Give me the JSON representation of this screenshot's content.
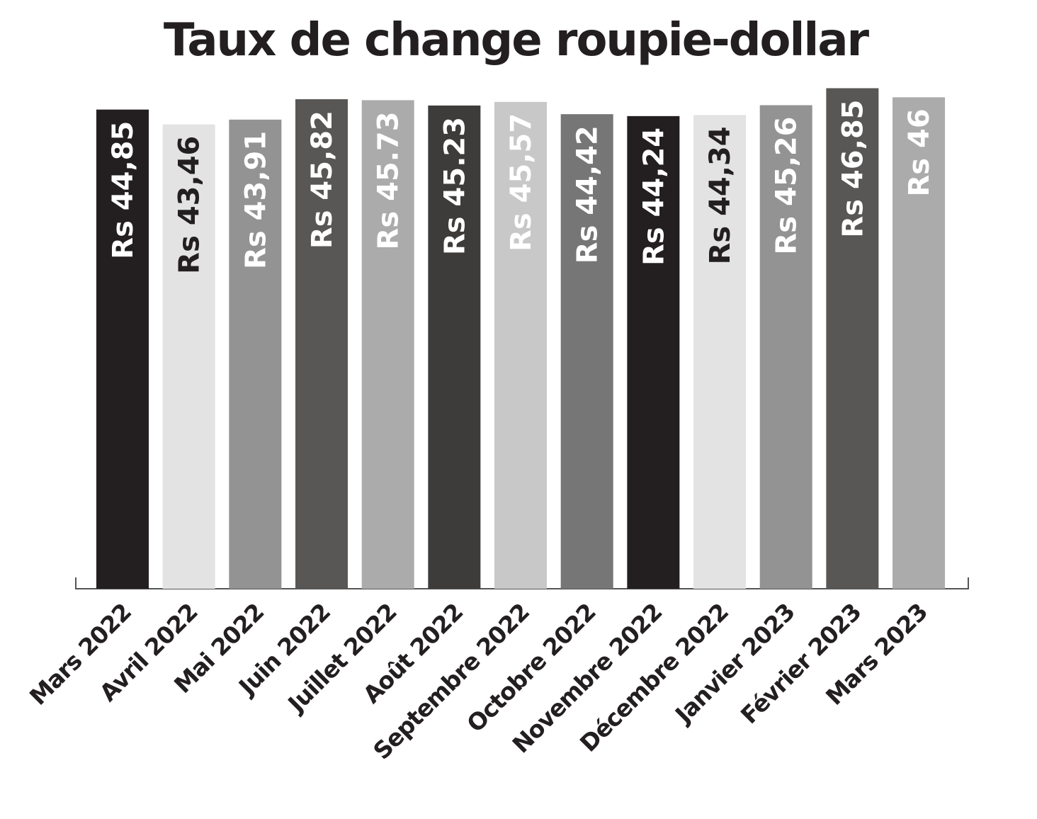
{
  "chart_data": {
    "type": "bar",
    "title": "Taux de change roupie-dollar",
    "categories": [
      "Mars 2022",
      "Avril 2022",
      "Mai 2022",
      "Juin 2022",
      "Juillet 2022",
      "Août 2022",
      "Septembre 2022",
      "Octobre 2022",
      "Novembre 2022",
      "Décembre 2022",
      "Janvier 2023",
      "Février 2023",
      "Mars 2023"
    ],
    "values": [
      44.85,
      43.46,
      43.91,
      45.82,
      45.73,
      45.23,
      45.57,
      44.42,
      44.24,
      44.34,
      45.26,
      46.85,
      46
    ],
    "value_labels": [
      "Rs 44,85",
      "Rs 43,46",
      "Rs 43,91",
      "Rs 45,82",
      "Rs 45.73",
      "Rs 45.23",
      "Rs 45,57",
      "Rs 44,42",
      "Rs 44,24",
      "Rs 44,34",
      "Rs 45,26",
      "Rs 46,85",
      "Rs 46"
    ],
    "colors": [
      "#231f20",
      "#e3e3e3",
      "#939393",
      "#585756",
      "#ababab",
      "#3e3c3b",
      "#c8c8c8",
      "#777677",
      "#231f20",
      "#e3e3e3",
      "#939393",
      "#585756",
      "#ababab"
    ],
    "ylim": [
      0,
      50
    ]
  }
}
